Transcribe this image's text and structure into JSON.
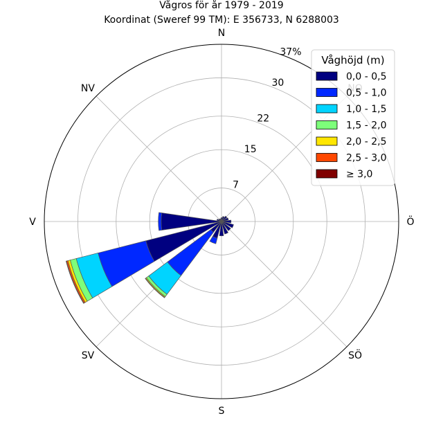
{
  "chart_data": {
    "type": "windrose",
    "title": "Vågros för år 1979 - 2019",
    "subtitle": "Koordinat (Sweref 99 TM): E 356733, N 6288003",
    "directions": [
      "N",
      "NO",
      "Ö",
      "SÖ",
      "S",
      "SV",
      "V",
      "NV"
    ],
    "rlim": [
      0,
      37
    ],
    "radial_ticks": [
      {
        "value": 7,
        "label": "7"
      },
      {
        "value": 15,
        "label": "15"
      },
      {
        "value": 22,
        "label": "22"
      },
      {
        "value": 30,
        "label": "30"
      },
      {
        "value": 37,
        "label": "37%"
      }
    ],
    "grid": true,
    "legend_title": "Våghöjd (m)",
    "legend_location": "top-right",
    "bins": [
      {
        "label": "0,0 - 0,5",
        "color": "#000080"
      },
      {
        "label": "0,5 - 1,0",
        "color": "#0028ff"
      },
      {
        "label": "1,0 - 1,5",
        "color": "#00d4ff"
      },
      {
        "label": "1,5 - 2,0",
        "color": "#7dff7a"
      },
      {
        "label": "2,0 - 2,5",
        "color": "#ffe600"
      },
      {
        "label": "2,5 - 3,0",
        "color": "#ff4800"
      },
      {
        "label": "≥ 3,0",
        "color": "#800000"
      }
    ],
    "sectors": [
      {
        "direction_deg": 0.0,
        "values": [
          0.8,
          0,
          0,
          0,
          0,
          0,
          0
        ]
      },
      {
        "direction_deg": 22.5,
        "values": [
          1.1,
          0,
          0,
          0,
          0,
          0,
          0
        ]
      },
      {
        "direction_deg": 45.0,
        "values": [
          1.4,
          0,
          0,
          0,
          0,
          0,
          0
        ]
      },
      {
        "direction_deg": 67.5,
        "values": [
          1.5,
          0,
          0,
          0,
          0,
          0,
          0
        ]
      },
      {
        "direction_deg": 90.0,
        "values": [
          2.0,
          0,
          0,
          0,
          0,
          0,
          0
        ]
      },
      {
        "direction_deg": 112.5,
        "values": [
          2.6,
          0,
          0,
          0,
          0,
          0,
          0
        ]
      },
      {
        "direction_deg": 135.0,
        "values": [
          2.4,
          0,
          0,
          0,
          0,
          0,
          0
        ]
      },
      {
        "direction_deg": 157.5,
        "values": [
          2.7,
          0,
          0,
          0,
          0,
          0,
          0
        ]
      },
      {
        "direction_deg": 180.0,
        "values": [
          3.0,
          0,
          0,
          0,
          0,
          0,
          0
        ]
      },
      {
        "direction_deg": 202.5,
        "values": [
          3.6,
          1.2,
          0,
          0,
          0,
          0,
          0
        ]
      },
      {
        "direction_deg": 225.0,
        "values": [
          2.8,
          11.3,
          4.9,
          0.6,
          0.2,
          0.1,
          0
        ]
      },
      {
        "direction_deg": 247.5,
        "values": [
          16.3,
          10.3,
          4.7,
          1.3,
          0.5,
          0.3,
          0.1
        ]
      },
      {
        "direction_deg": 270.0,
        "values": [
          12.6,
          0.6,
          0,
          0,
          0,
          0,
          0
        ]
      },
      {
        "direction_deg": 292.5,
        "values": [
          1.0,
          0,
          0,
          0,
          0,
          0,
          0
        ]
      },
      {
        "direction_deg": 315.0,
        "values": [
          0.7,
          0,
          0,
          0,
          0,
          0,
          0
        ]
      },
      {
        "direction_deg": 337.5,
        "values": [
          0.6,
          0,
          0,
          0,
          0,
          0,
          0
        ]
      }
    ]
  }
}
